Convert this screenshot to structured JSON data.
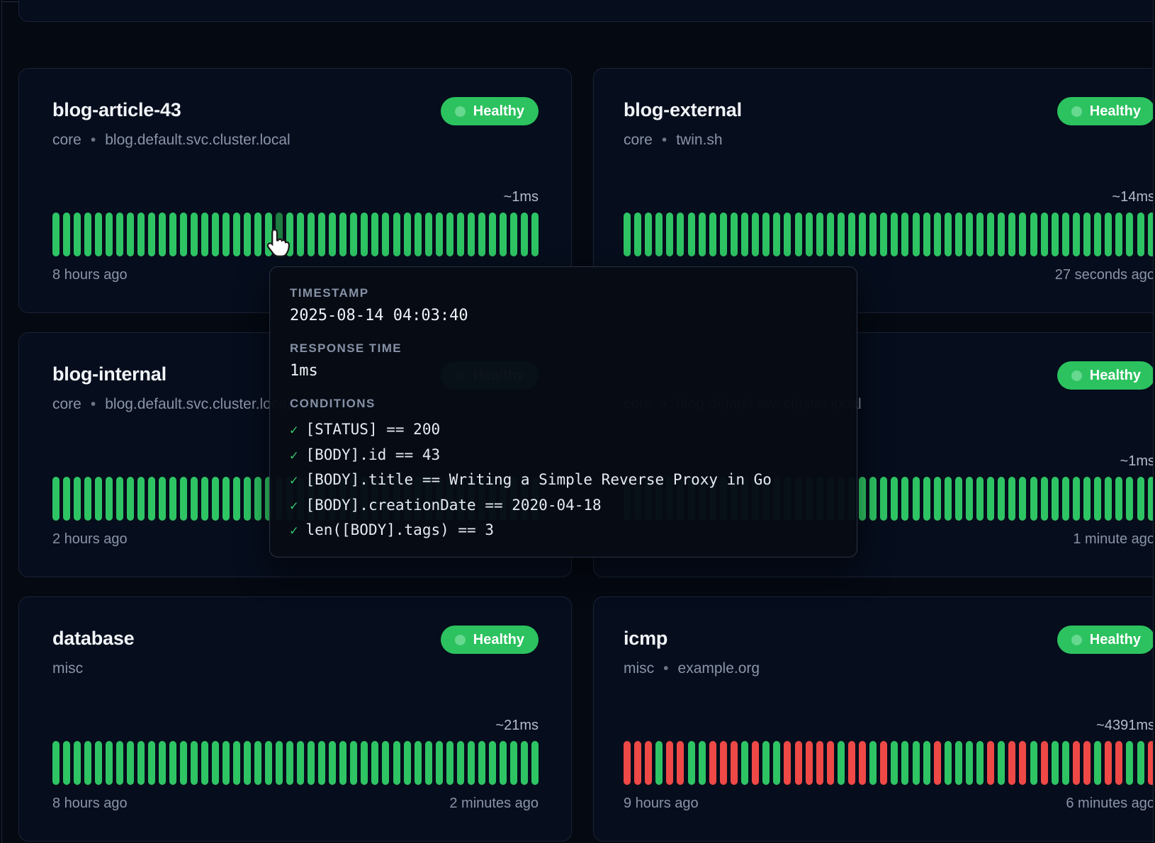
{
  "ui": {
    "bullet": "•",
    "check_glyph": "✓",
    "colors": {
      "healthy_green": "#2cc25f",
      "bar_green": "#2ec464",
      "bar_red": "#ee4946",
      "bar_hover": "#1d7c41",
      "card_bg": "#060d1c",
      "page_bg": "#040912"
    }
  },
  "cards": [
    {
      "title": "blog-article-43",
      "group": "core",
      "target": "blog.default.svc.cluster.local",
      "status": "Healthy",
      "response_time": "~1ms",
      "oldest": "8 hours ago",
      "newest": "",
      "bars": "GGGGGGGGGGGGGGGGGGGGGHGGGGGGGGGGGGGGGGGGGGGGGG"
    },
    {
      "title": "blog-external",
      "group": "core",
      "target": "twin.sh",
      "status": "Healthy",
      "response_time": "~14ms",
      "oldest": "",
      "newest": "27 seconds ago",
      "bars": "GGGGGGGGGGGGGGGGGGGGGGGGGGGGGGGGGGGGGGGGGGGGGGGGGG"
    },
    {
      "title": "blog-internal",
      "group": "core",
      "target": "blog.default.svc.cluster.local",
      "status": "Healthy",
      "response_time": "",
      "oldest": "2 hours ago",
      "newest": "",
      "bars": "GGGGGGGGGGGGGGGGGGGGGGGGGGGGGGGGGGGGGGGGGGGGGG"
    },
    {
      "title": "",
      "group": "core",
      "target": "blog.default.svc.cluster.local",
      "status": "Healthy",
      "response_time": "~1ms",
      "oldest": "",
      "newest": "1 minute ago",
      "bars": "GGGGGGGGGGGGGGGGGGGGGGGGGGGGGGGGGGGGGGGGGGGGGGGGGG"
    },
    {
      "title": "database",
      "group": "misc",
      "target": "",
      "status": "Healthy",
      "response_time": "~21ms",
      "oldest": "8 hours ago",
      "newest": "2 minutes ago",
      "bars": "GGGGGGGGGGGGGGGGGGGGGGGGGGGGGGGGGGGGGGGGGGGGGG"
    },
    {
      "title": "icmp",
      "group": "misc",
      "target": "example.org",
      "status": "Healthy",
      "response_time": "~4391ms",
      "oldest": "9 hours ago",
      "newest": "6 minutes ago",
      "bars": "RRRGRRGGRRRGRGGRRRRRGRRGRGGGGRGGGGRGRRGRGGRRGRRGGR"
    }
  ],
  "tooltip": {
    "timestamp_label": "TIMESTAMP",
    "timestamp": "2025-08-14 04:03:40",
    "response_time_label": "RESPONSE TIME",
    "response_time": "1ms",
    "conditions_label": "CONDITIONS",
    "conditions": [
      "[STATUS] == 200",
      "[BODY].id == 43",
      "[BODY].title == Writing a Simple Reverse Proxy in Go",
      "[BODY].creationDate == 2020-04-18",
      "len([BODY].tags) == 3"
    ]
  }
}
